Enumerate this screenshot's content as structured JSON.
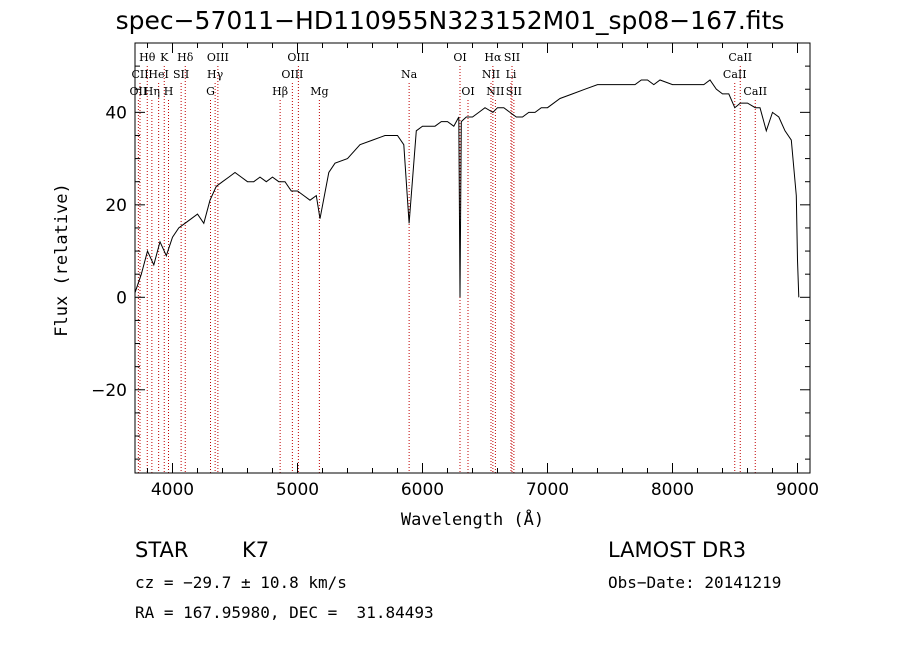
{
  "chart_data": {
    "type": "line",
    "title": "spec−57011−HD110955N323152M01_sp08−167.fits",
    "xlabel": "Wavelength (Å)",
    "ylabel": "Flux (relative)",
    "xlim": [
      3700,
      9100
    ],
    "ylim": [
      -38,
      55
    ],
    "xticks": [
      4000,
      5000,
      6000,
      7000,
      8000,
      9000
    ],
    "yticks": [
      -20,
      0,
      20,
      40
    ],
    "ytick_labels": [
      "−20",
      "0",
      "20",
      "40"
    ],
    "grid": false,
    "series": [
      {
        "name": "spectrum",
        "x": [
          3700,
          3750,
          3800,
          3850,
          3900,
          3950,
          4000,
          4050,
          4100,
          4150,
          4200,
          4250,
          4300,
          4350,
          4400,
          4450,
          4500,
          4550,
          4600,
          4650,
          4700,
          4750,
          4800,
          4850,
          4900,
          4950,
          5000,
          5050,
          5100,
          5150,
          5180,
          5250,
          5300,
          5400,
          5500,
          5600,
          5700,
          5800,
          5850,
          5893,
          5950,
          6000,
          6050,
          6100,
          6150,
          6200,
          6250,
          6290,
          6300,
          6310,
          6350,
          6400,
          6450,
          6500,
          6563,
          6600,
          6650,
          6700,
          6750,
          6800,
          6850,
          6900,
          6950,
          7000,
          7100,
          7200,
          7300,
          7400,
          7500,
          7600,
          7700,
          7750,
          7800,
          7850,
          7900,
          8000,
          8100,
          8200,
          8250,
          8300,
          8350,
          8400,
          8450,
          8498,
          8542,
          8600,
          8662,
          8700,
          8750,
          8800,
          8850,
          8900,
          8950,
          8990,
          9000,
          9010
        ],
        "values": [
          1,
          5,
          10,
          7,
          12,
          9,
          13,
          15,
          16,
          17,
          18,
          16,
          21,
          24,
          25,
          26,
          27,
          26,
          25,
          25,
          26,
          25,
          26,
          25,
          25,
          23,
          23,
          22,
          21,
          22,
          17,
          27,
          29,
          30,
          33,
          34,
          35,
          35,
          33,
          16,
          36,
          37,
          37,
          37,
          38,
          38,
          37,
          39,
          0,
          38,
          39,
          39,
          40,
          41,
          40,
          41,
          41,
          40,
          39,
          39,
          40,
          40,
          41,
          41,
          43,
          44,
          45,
          46,
          46,
          46,
          46,
          47,
          47,
          46,
          47,
          46,
          46,
          46,
          46,
          47,
          45,
          44,
          44,
          41,
          42,
          42,
          41,
          41,
          36,
          40,
          39,
          36,
          34,
          22,
          8,
          0
        ]
      }
    ],
    "line_markers": [
      {
        "label": "Hθ",
        "x": 3798,
        "row": 1
      },
      {
        "label": "OII",
        "x": 3727,
        "row": 3
      },
      {
        "label": "CII",
        "x": 3740,
        "row": 2
      },
      {
        "label": "Hη",
        "x": 3835,
        "row": 3
      },
      {
        "label": "HeI",
        "x": 3889,
        "row": 2
      },
      {
        "label": "K",
        "x": 3934,
        "row": 1
      },
      {
        "label": "H",
        "x": 3968,
        "row": 3
      },
      {
        "label": "SII",
        "x": 4069,
        "row": 2
      },
      {
        "label": "Hδ",
        "x": 4102,
        "row": 1
      },
      {
        "label": "G",
        "x": 4304,
        "row": 3
      },
      {
        "label": "Hγ",
        "x": 4341,
        "row": 2
      },
      {
        "label": "OIII",
        "x": 4363,
        "row": 1
      },
      {
        "label": "Hβ",
        "x": 4861,
        "row": 3
      },
      {
        "label": "OIII",
        "x": 4959,
        "row": 2
      },
      {
        "label": "OIII",
        "x": 5007,
        "row": 1
      },
      {
        "label": "Mg",
        "x": 5175,
        "row": 3
      },
      {
        "label": "Na",
        "x": 5893,
        "row": 2
      },
      {
        "label": "OI",
        "x": 6300,
        "row": 1
      },
      {
        "label": "OI",
        "x": 6364,
        "row": 3
      },
      {
        "label": "NII",
        "x": 6548,
        "row": 2
      },
      {
        "label": "Hα",
        "x": 6563,
        "row": 1
      },
      {
        "label": "NII",
        "x": 6583,
        "row": 3
      },
      {
        "label": "Li",
        "x": 6708,
        "row": 2
      },
      {
        "label": "SII",
        "x": 6716,
        "row": 1
      },
      {
        "label": "SII",
        "x": 6731,
        "row": 3
      },
      {
        "label": "CaII",
        "x": 8498,
        "row": 2
      },
      {
        "label": "CaII",
        "x": 8542,
        "row": 1
      },
      {
        "label": "CaII",
        "x": 8662,
        "row": 3
      }
    ]
  },
  "info": {
    "object_class": "STAR",
    "subclass": "K7",
    "survey": "LAMOST DR3",
    "redshift_text": "cz = −29.7 ± 10.8 km/s",
    "obs_date_text": "Obs−Date: 20141219",
    "coords_text": "RA = 167.95980, DEC =  31.84493"
  }
}
